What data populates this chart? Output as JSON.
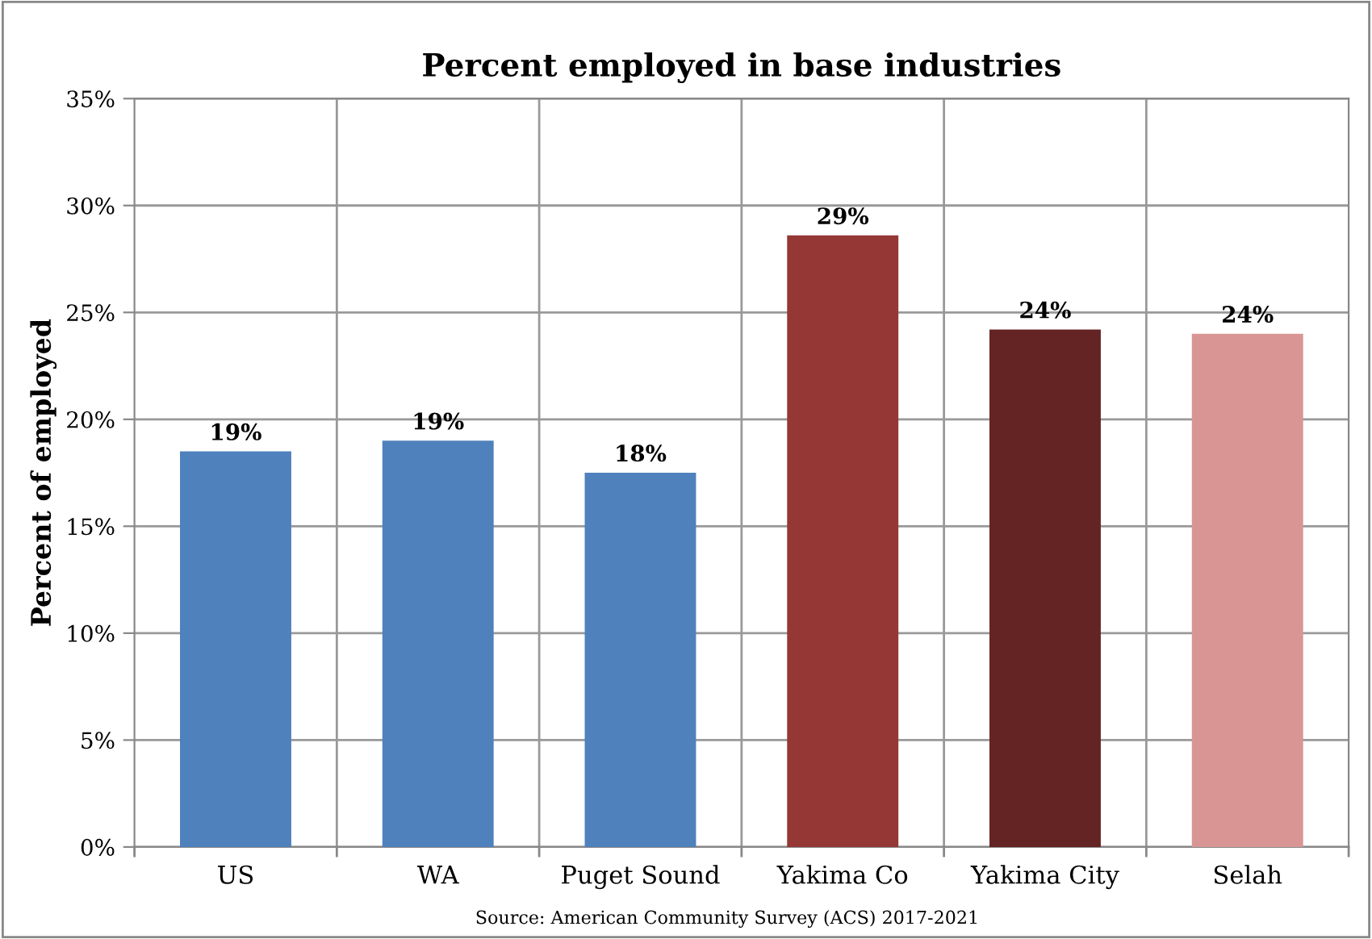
{
  "chart_data": {
    "type": "bar",
    "title": "Percent employed in base industries",
    "ylabel": "Percent of employed",
    "categories": [
      "US",
      "WA",
      "Puget Sound",
      "Yakima Co",
      "Yakima City",
      "Selah"
    ],
    "values": [
      18.5,
      19.0,
      17.5,
      28.6,
      24.2,
      24.0
    ],
    "colors": [
      "#4f81bd",
      "#4f81bd",
      "#4f81bd",
      "#953735",
      "#632423",
      "#d99594"
    ],
    "value_labels": [
      "19%",
      "19%",
      "18%",
      "29%",
      "24%",
      "24%"
    ],
    "ylim": [
      0,
      35
    ],
    "yticks": [
      {
        "value": 0,
        "label": "0%"
      },
      {
        "value": 5,
        "label": "5%"
      },
      {
        "value": 10,
        "label": "10%"
      },
      {
        "value": 15,
        "label": "15%"
      },
      {
        "value": 20,
        "label": "20%"
      },
      {
        "value": 25,
        "label": "25%"
      },
      {
        "value": 30,
        "label": "30%"
      },
      {
        "value": 35,
        "label": "35%"
      }
    ],
    "grid": true,
    "annotations": [
      "Source: American Community Survey (ACS) 2017-2021"
    ]
  }
}
